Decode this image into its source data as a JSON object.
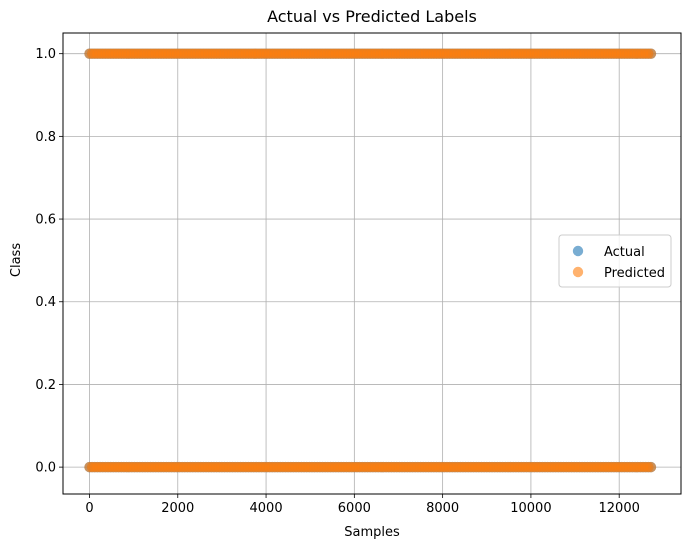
{
  "chart_data": {
    "type": "scatter",
    "title": "Actual vs Predicted Labels",
    "xlabel": "Samples",
    "ylabel": "Class",
    "xlim": [
      -600,
      13400
    ],
    "ylim": [
      -0.065,
      1.05
    ],
    "xticks": [
      0,
      2000,
      4000,
      6000,
      8000,
      10000,
      12000
    ],
    "yticks": [
      0.0,
      0.2,
      0.4,
      0.6,
      0.8,
      1.0
    ],
    "xtick_labels": [
      "0",
      "2000",
      "4000",
      "6000",
      "8000",
      "10000",
      "12000"
    ],
    "ytick_labels": [
      "0.0",
      "0.2",
      "0.4",
      "0.6",
      "0.8",
      "1.0"
    ],
    "grid": true,
    "legend_position": "center-right",
    "series": [
      {
        "name": "Actual",
        "color": "#1f77b4",
        "alpha": 0.6,
        "x_range": [
          0,
          12750
        ],
        "y_values": [
          0,
          1
        ]
      },
      {
        "name": "Predicted",
        "color": "#ff7f0e",
        "alpha": 0.6,
        "x_range": [
          0,
          12750
        ],
        "y_values": [
          0,
          1
        ]
      }
    ]
  }
}
